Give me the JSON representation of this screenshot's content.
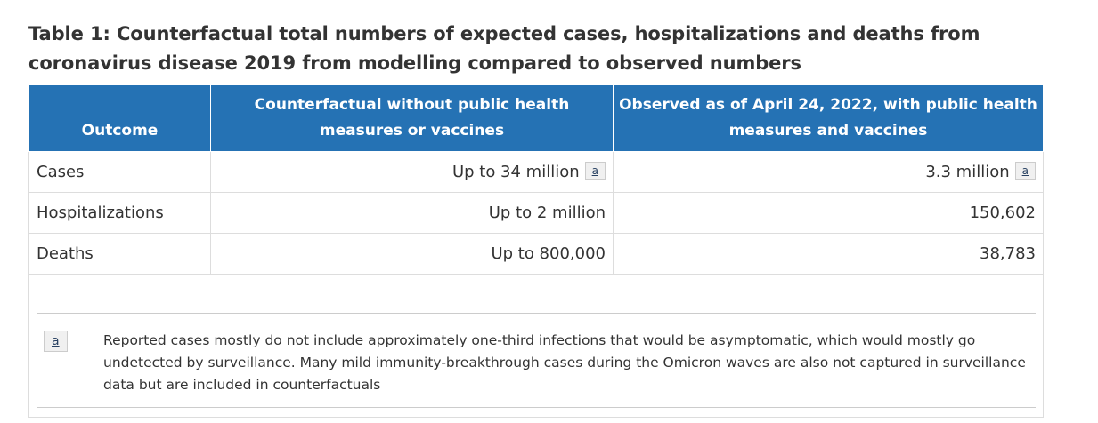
{
  "caption": "Table 1: Counterfactual total numbers of expected cases, hospitalizations and deaths from coronavirus disease 2019 from modelling compared to observed numbers",
  "headers": {
    "outcome": "Outcome",
    "counterfactual": "Counterfactual without public health measures or vaccines",
    "observed": "Observed as of April 24, 2022, with public health measures and vaccines"
  },
  "rows": [
    {
      "outcome": "Cases",
      "counterfactual": "Up to 34 million",
      "counterfactual_fn": "a",
      "observed": "3.3 million",
      "observed_fn": "a"
    },
    {
      "outcome": "Hospitalizations",
      "counterfactual": "Up to 2 million",
      "observed": "150,602"
    },
    {
      "outcome": "Deaths",
      "counterfactual": "Up to 800,000",
      "observed": "38,783"
    }
  ],
  "footnote": {
    "label": "a",
    "text": "Reported cases mostly do not include approximately one-third infections that would be asymptomatic, which would mostly go undetected by surveillance. Many mild immunity-breakthrough cases during the Omicron waves are also not captured in surveillance data but are included in counterfactuals"
  }
}
